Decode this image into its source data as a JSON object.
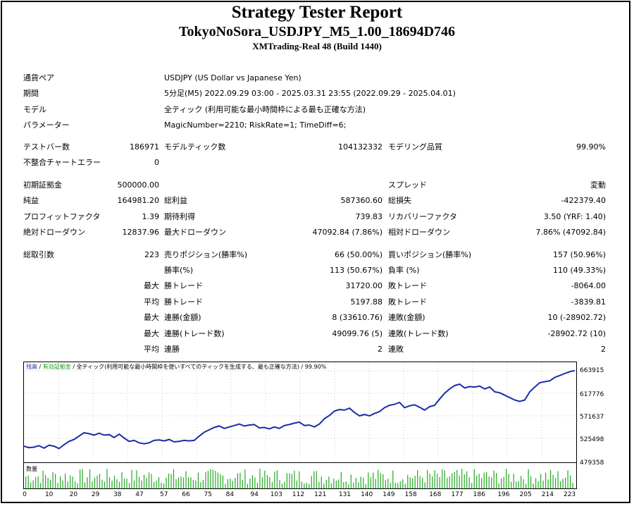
{
  "header": {
    "title": "Strategy Tester Report",
    "subtitle": "TokyoNoSora_USDJPY_M5_1.00_18694D746",
    "build": "XMTrading-Real 48 (Build 1440)"
  },
  "info": {
    "pair_label": "通貨ペア",
    "pair_value": "USDJPY (US Dollar vs Japanese Yen)",
    "period_label": "期間",
    "period_value": "5分足(M5) 2022.09.29 03:00 - 2025.03.31 23:55 (2022.09.29 - 2025.04.01)",
    "model_label": "モデル",
    "model_value": "全ティック (利用可能な最小時間枠による最も正確な方法)",
    "params_label": "パラメーター",
    "params_value": "MagicNumber=2210; RiskRate=1; TimeDiff=6;"
  },
  "stats": {
    "bars_label": "テストバー数",
    "bars_value": "186971",
    "ticks_label": "モデルティック数",
    "ticks_value": "104132332",
    "quality_label": "モデリング品質",
    "quality_value": "99.90%",
    "mismatch_label": "不整合チャートエラー",
    "mismatch_value": "0",
    "deposit_label": "初期証拠金",
    "deposit_value": "500000.00",
    "spread_label": "スプレッド",
    "spread_value": "変動",
    "netprofit_label": "純益",
    "netprofit_value": "164981.20",
    "grossprofit_label": "総利益",
    "grossprofit_value": "587360.60",
    "grossloss_label": "総損失",
    "grossloss_value": "-422379.40",
    "pf_label": "プロフィットファクタ",
    "pf_value": "1.39",
    "expected_label": "期待利得",
    "expected_value": "739.83",
    "recovery_label": "リカバリーファクタ",
    "recovery_value": "3.50 (YRF: 1.40)",
    "absdd_label": "絶対ドローダウン",
    "absdd_value": "12837.96",
    "maxdd_label": "最大ドローダウン",
    "maxdd_value": "47092.84 (7.86%)",
    "reldd_label": "相対ドローダウン",
    "reldd_value": "7.86% (47092.84)",
    "trades_label": "総取引数",
    "trades_value": "223",
    "short_label": "売りポジション(勝率%)",
    "short_value": "66 (50.00%)",
    "long_label": "買いポジション(勝率%)",
    "long_value": "157 (50.96%)",
    "winrate_label": "勝率(%)",
    "winrate_value": "113 (50.67%)",
    "lossrate_label": "負率 (%)",
    "lossrate_value": "110 (49.33%)",
    "max1": "最大",
    "largest_win_label": "勝トレード",
    "largest_win_value": "31720.00",
    "largest_loss_label": "敗トレード",
    "largest_loss_value": "-8064.00",
    "avg1": "平均",
    "avg_win_label": "勝トレード",
    "avg_win_value": "5197.88",
    "avg_loss_label": "敗トレード",
    "avg_loss_value": "-3839.81",
    "max2": "最大",
    "cons_win_money_label": "連勝(金額)",
    "cons_win_money_value": "8 (33610.76)",
    "cons_loss_money_label": "連敗(金額)",
    "cons_loss_money_value": "10 (-28902.72)",
    "max3": "最大",
    "cons_win_count_label": "連勝(トレード数)",
    "cons_win_count_value": "49099.76 (5)",
    "cons_loss_count_label": "連敗(トレード数)",
    "cons_loss_count_value": "-28902.72 (10)",
    "avg2": "平均",
    "avg_cons_win_label": "連勝",
    "avg_cons_win_value": "2",
    "avg_cons_loss_label": "連敗",
    "avg_cons_loss_value": "2"
  },
  "chart_data": {
    "type": "line",
    "legend_balance": "残高",
    "legend_sep1": " / ",
    "legend_equity": "有効証拠金",
    "legend_sep2": " / ",
    "legend_model": "全ティック(利用可能な最小時間枠を使いすべてのティックを生成する、最も正確な方法)",
    "legend_sep3": " / ",
    "legend_quality": "99.90%",
    "volume_label": "数量",
    "y_ticks": [
      "663915",
      "617776",
      "571637",
      "525498",
      "479358"
    ],
    "x_ticks": [
      "0",
      "10",
      "20",
      "29",
      "38",
      "47",
      "57",
      "66",
      "75",
      "84",
      "94",
      "103",
      "112",
      "121",
      "131",
      "140",
      "149",
      "158",
      "168",
      "177",
      "186",
      "196",
      "205",
      "214",
      "223"
    ],
    "ylim": [
      479358,
      663915
    ],
    "xlim": [
      0,
      226
    ],
    "series": [
      {
        "values": [
          507000,
          504000,
          505000,
          508000,
          503000,
          509000,
          507000,
          502000,
          510000,
          517000,
          521000,
          528000,
          535000,
          533000,
          530000,
          534000,
          530000,
          531000,
          525000,
          532000,
          524000,
          517000,
          519000,
          514000,
          512000,
          514000,
          519000,
          520000,
          518000,
          521000,
          516000,
          517000,
          519000,
          518000,
          519000,
          528000,
          536000,
          541000,
          546000,
          549000,
          544000,
          547000,
          550000,
          553000,
          549000,
          551000,
          552000,
          545000,
          546000,
          543000,
          547000,
          544000,
          550000,
          552000,
          555000,
          557000,
          550000,
          551000,
          547000,
          553000,
          564000,
          571000,
          580000,
          583000,
          582000,
          586000,
          577000,
          570000,
          573000,
          570000,
          575000,
          579000,
          587000,
          592000,
          594000,
          598000,
          587000,
          591000,
          593000,
          588000,
          582000,
          589000,
          592000,
          605000,
          617000,
          626000,
          633000,
          636000,
          628000,
          631000,
          630000,
          632000,
          626000,
          630000,
          620000,
          618000,
          613000,
          608000,
          603000,
          600000,
          603000,
          620000,
          630000,
          639000,
          641000,
          643000,
          650000,
          654000,
          658000,
          662000,
          664000
        ]
      }
    ]
  }
}
